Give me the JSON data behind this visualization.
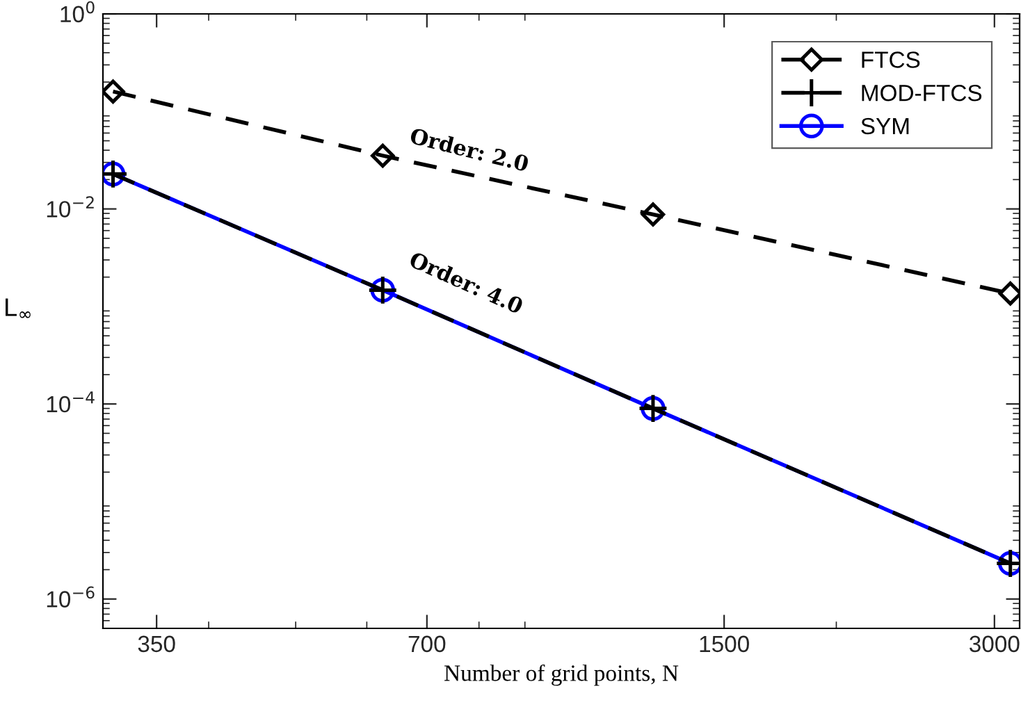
{
  "chart_data": {
    "type": "line",
    "xlabel": "Number of grid points, N",
    "ylabel": "L$_{∞}$",
    "log": "xy",
    "x": [
      313,
      625,
      1250,
      3125
    ],
    "series": [
      {
        "name": "FTCS",
        "color": "#000000",
        "marker": "diamond",
        "line_style": "dashed",
        "values": [
          0.16,
          0.0352,
          0.00877,
          0.00136
        ]
      },
      {
        "name": "MOD-FTCS",
        "color": "#000000",
        "marker": "cross",
        "line_style": "dashed",
        "values": [
          0.0228,
          0.00147,
          9e-05,
          2.32e-06
        ]
      },
      {
        "name": "SYM",
        "color": "#0000ff",
        "marker": "circle",
        "line_style": "solid",
        "values": [
          0.0228,
          0.00147,
          9e-05,
          2.32e-06
        ]
      }
    ],
    "xlim": [
      305,
      3200
    ],
    "xticks": [
      350,
      700,
      1500,
      3000
    ],
    "ylim": [
      5e-07,
      1
    ],
    "yticks": [
      {
        "value": 1,
        "label": "10$^{0}$"
      },
      {
        "value": 0.01,
        "label": "10$^{−2}$"
      },
      {
        "value": 0.0001,
        "label": "10$^{−4}$"
      },
      {
        "value": 1e-06,
        "label": "10$^{−6}$"
      }
    ],
    "annotations": [
      "Order: 2.0",
      "Order: 4.0"
    ],
    "legend": "top right",
    "grid": false
  }
}
